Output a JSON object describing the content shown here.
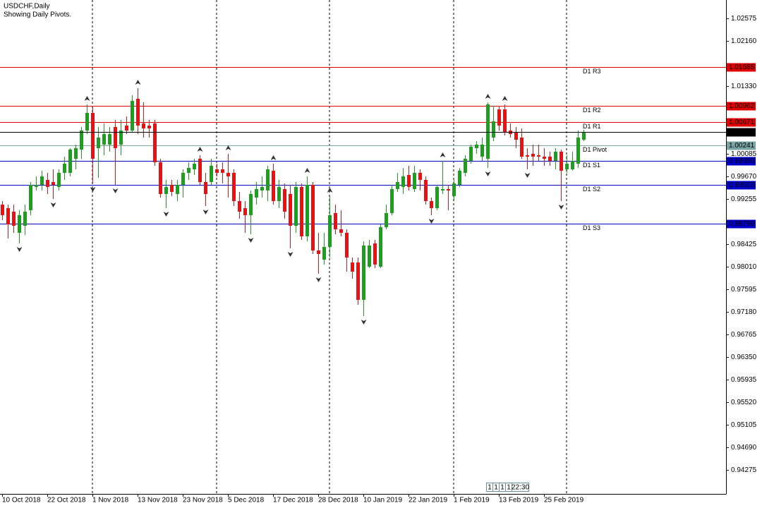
{
  "chart_data": {
    "type": "candlestick",
    "title": "USDCHF,Daily",
    "subtitle": "Showing Daily Pivots.",
    "categories": [
      "10 Oct 2018",
      null,
      null,
      null,
      null,
      null,
      null,
      null,
      "22 Oct 2018",
      null,
      null,
      null,
      null,
      null,
      null,
      null,
      "1 Nov 2018",
      null,
      null,
      null,
      null,
      null,
      null,
      null,
      "13 Nov 2018",
      null,
      null,
      null,
      null,
      null,
      null,
      null,
      "23 Nov 2018",
      null,
      null,
      null,
      null,
      null,
      null,
      null,
      "5 Dec 2018",
      null,
      null,
      null,
      null,
      null,
      null,
      null,
      "17 Dec 2018",
      null,
      null,
      null,
      null,
      null,
      null,
      null,
      "28 Dec 2018",
      null,
      null,
      null,
      null,
      null,
      null,
      null,
      "10 Jan 2019",
      null,
      null,
      null,
      null,
      null,
      null,
      null,
      "22 Jan 2019",
      null,
      null,
      null,
      null,
      null,
      null,
      null,
      "1 Feb 2019",
      null,
      null,
      null,
      null,
      null,
      null,
      null,
      "13 Feb 2019",
      null,
      null,
      null,
      null,
      null,
      null,
      null,
      "25 Feb 2019",
      null,
      null,
      null,
      null,
      null,
      null,
      null
    ],
    "open": [
      0.99151,
      0.99086,
      0.99022,
      0.98633,
      0.98762,
      0.99048,
      0.99476,
      0.99514,
      0.99605,
      0.99566,
      0.99476,
      0.99735,
      0.99735,
      0.99994,
      1.00163,
      1.00513,
      1.00837,
      1.00189,
      1.00254,
      1.00254,
      1.00578,
      1.00254,
      1.00604,
      1.00513,
      1.01097,
      1.00643,
      1.00604,
      1.00643,
      0.99929,
      0.99346,
      0.99514,
      0.99346,
      0.99514,
      0.99735,
      0.998,
      0.99994,
      0.99566,
      0.99566,
      0.998,
      0.998,
      0.99735,
      0.99735,
      0.99216,
      0.99086,
      0.98957,
      0.99281,
      0.99411,
      0.99411,
      0.99774,
      0.99216,
      0.99437,
      0.99346,
      0.98762,
      0.99476,
      0.98568,
      0.99514,
      0.98308,
      0.9814,
      0.98373,
      0.98996,
      0.98697,
      0.98633,
      0.98088,
      0.98088,
      0.97401,
      0.9801,
      0.98438,
      0.9801,
      0.98736,
      0.98996,
      0.99437,
      0.99476,
      0.99696,
      0.99437,
      0.99735,
      0.99605,
      0.99216,
      0.99086,
      0.99411,
      0.99437,
      0.99307,
      0.99514,
      0.99735,
      0.99955,
      1.00189,
      1.00033,
      0.99994,
      1.00383,
      1.00902,
      1.00902,
      1.00513,
      1.00474,
      1.00383,
      1.00059,
      1.00085,
      1.00059,
      1.00033,
      1.00033,
      0.99955,
      1.00124,
      0.998,
      0.998,
      0.99903,
      1.00344
    ],
    "high": [
      0.99216,
      0.99151,
      0.99151,
      0.99048,
      0.99151,
      0.99566,
      0.9967,
      0.99774,
      0.99735,
      0.998,
      0.998,
      1.00033,
      1.00189,
      1.00254,
      1.00578,
      1.00993,
      1.00941,
      1.00578,
      1.00643,
      1.00578,
      1.00707,
      1.00707,
      1.00772,
      1.01161,
      1.01291,
      1.01032,
      1.00707,
      1.00707,
      0.99994,
      0.99605,
      0.99605,
      0.99605,
      0.998,
      0.99929,
      0.99994,
      1.00059,
      0.99735,
      0.99994,
      0.99903,
      0.99929,
      1.00085,
      0.998,
      0.99385,
      0.99216,
      0.99411,
      0.99566,
      0.9967,
      0.99865,
      0.99903,
      0.99605,
      0.9954,
      0.99514,
      0.99566,
      0.9954,
      0.9967,
      0.99566,
      0.98633,
      0.98633,
      0.99307,
      0.99151,
      0.99048,
      0.98697,
      0.98179,
      0.98179,
      0.98477,
      0.98503,
      0.98503,
      0.98788,
      0.99151,
      0.99514,
      0.99735,
      0.99826,
      0.99865,
      0.99865,
      0.998,
      0.9967,
      0.99281,
      0.99514,
      0.99955,
      0.99514,
      0.99605,
      0.99826,
      1.00059,
      1.00254,
      1.00318,
      1.00383,
      1.01032,
      1.00967,
      1.00967,
      1.00993,
      1.00643,
      1.00578,
      1.00552,
      1.00189,
      1.00254,
      1.00254,
      1.00189,
      1.00124,
      1.00189,
      1.00163,
      1.00059,
      1.00124,
      1.00513,
      1.00526
    ],
    "low": [
      0.98866,
      0.98529,
      0.98633,
      0.98438,
      0.98594,
      0.98957,
      0.99411,
      0.99411,
      0.99346,
      0.99255,
      0.99411,
      0.99605,
      0.9967,
      0.998,
      0.99994,
      1.00448,
      0.9954,
      0.99644,
      1.00059,
      1.00124,
      0.99514,
      1.00059,
      1.00448,
      1.00474,
      1.00448,
      1.00383,
      1.00383,
      0.99865,
      0.99281,
      0.99086,
      0.99307,
      0.99216,
      0.99281,
      0.99605,
      0.99696,
      0.99514,
      0.99125,
      0.99514,
      0.9967,
      0.9954,
      0.99281,
      0.99125,
      0.98892,
      0.98633,
      0.98607,
      0.99151,
      0.99281,
      0.99216,
      0.99151,
      0.99086,
      0.98892,
      0.98347,
      0.98633,
      0.98503,
      0.98477,
      0.98244,
      0.9788,
      0.98049,
      0.98179,
      0.98607,
      0.98568,
      0.97919,
      0.9779,
      0.9731,
      0.97102,
      0.97984,
      0.97984,
      0.97984,
      0.98697,
      0.98957,
      0.99385,
      0.99346,
      0.99411,
      0.99385,
      0.99411,
      0.99151,
      0.98957,
      0.99048,
      0.99346,
      0.99048,
      0.99216,
      0.99476,
      0.9967,
      0.99903,
      1.00085,
      0.99955,
      0.99826,
      1.00318,
      1.00513,
      1.00422,
      1.00383,
      1.00189,
      0.99994,
      0.998,
      0.99865,
      0.99955,
      0.99865,
      0.99865,
      0.998,
      0.99216,
      0.99735,
      0.99774,
      0.99826,
      1.00318
    ],
    "close": [
      0.98957,
      0.98788,
      0.98762,
      0.98957,
      0.99022,
      0.99514,
      0.99514,
      0.9967,
      0.99476,
      0.99514,
      0.99735,
      0.99903,
      1.00163,
      1.00189,
      1.00513,
      1.00837,
      0.99994,
      1.00383,
      1.00448,
      1.00448,
      1.00189,
      1.00513,
      1.00513,
      1.01058,
      1.00604,
      1.00552,
      1.00552,
      0.99929,
      0.99346,
      0.99476,
      0.99385,
      0.99514,
      0.99735,
      0.99826,
      0.99903,
      0.99566,
      0.99346,
      0.99865,
      0.99735,
      0.99735,
      0.9967,
      0.99216,
      0.99022,
      0.98957,
      0.99346,
      0.99437,
      0.99476,
      0.998,
      0.99216,
      0.99476,
      0.99022,
      0.98762,
      0.99476,
      0.98568,
      0.99514,
      0.98308,
      0.98244,
      0.98373,
      0.98957,
      0.98697,
      0.98633,
      0.98179,
      0.97919,
      0.97401,
      0.98399,
      0.98399,
      0.98049,
      0.98736,
      0.98996,
      0.99437,
      0.99566,
      0.9967,
      0.99476,
      0.99735,
      0.99605,
      0.99216,
      0.99086,
      0.99476,
      0.99437,
      0.99411,
      0.9954,
      0.99774,
      0.99994,
      1.00215,
      1.00254,
      1.00254,
      1.00993,
      1.00682,
      1.00604,
      1.00474,
      1.00448,
      1.00344,
      1.00033,
      1.00033,
      1.00033,
      1.00033,
      0.99994,
      0.99955,
      1.00124,
      0.99774,
      0.99903,
      0.99955,
      1.00383,
      1.00482
    ],
    "up_color": "#1e9e1e",
    "down_color": "#e81010",
    "ylim": [
      0.93834,
      1.02912
    ],
    "yticks": [
      1.02575,
      {
        "value": 1.0216,
        "label": "1.02160"
      },
      {
        "value": 1.0133,
        "label": "1.01330"
      },
      1.00085,
      {
        "value": 0.9967,
        "label": "0.99670"
      },
      0.99255,
      0.98425,
      {
        "value": 0.9801,
        "label": "0.98010"
      },
      0.97595,
      {
        "value": 0.9718,
        "label": "0.97180"
      },
      0.96765,
      {
        "value": 0.9635,
        "label": "0.96350"
      },
      0.95935,
      {
        "value": 0.9552,
        "label": "0.95520"
      },
      0.95105,
      {
        "value": 0.9469,
        "label": "0.94690"
      },
      0.94275
    ],
    "levels": {
      "names": [
        "D1 R3",
        "D1 R2",
        "D1 R1",
        "D1 Pivot",
        "D1 S1",
        "D1 S2",
        "D1 S3"
      ],
      "values": [
        1.01685,
        1.00962,
        1.00671,
        1.00241,
        0.9995,
        0.9952,
        0.98799
      ],
      "value_labels": [
        "1.01685",
        "1.00962",
        "1.00671",
        "1.00241",
        "0.99950",
        "0.99520",
        "0.98799"
      ],
      "colors": [
        "#e00000",
        "#e00000",
        "#e00000",
        "#7aa3a3",
        "#0000c8",
        "#0000c8",
        "#0000c8"
      ]
    },
    "price_line_color": "#000000"
  },
  "status_bar": [
    "1",
    "1",
    "1",
    "1",
    "22:30"
  ]
}
